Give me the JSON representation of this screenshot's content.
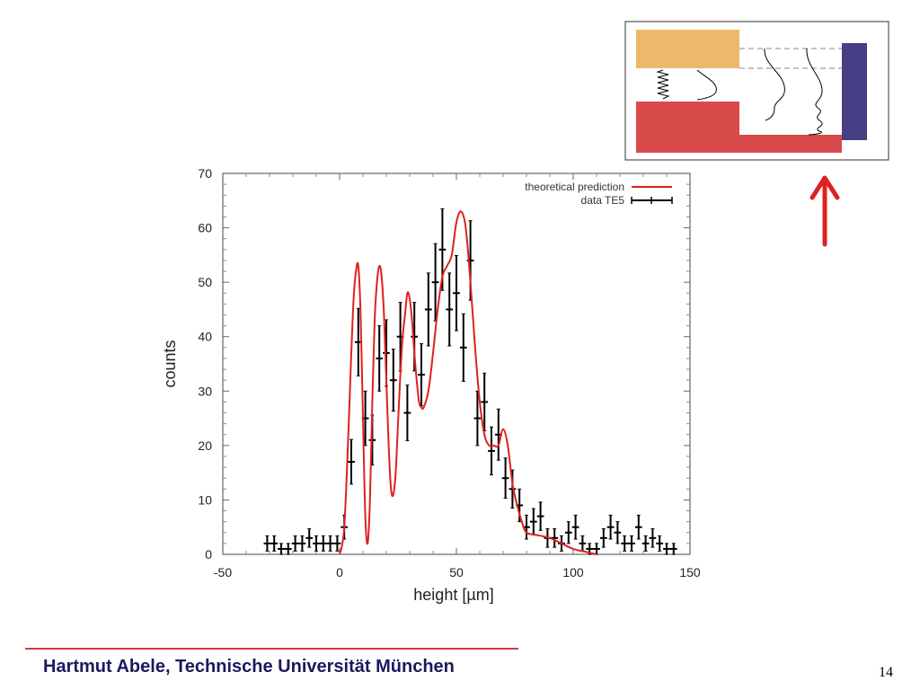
{
  "footer": {
    "author": "Hartmut Abele, Technische Universität München",
    "page_number": "14"
  },
  "colors": {
    "prediction": "#e02020",
    "data": "#000000",
    "inset_top_block": "#ecb96a",
    "inset_bottom_block": "#d94a4a",
    "inset_detector": "#463f85",
    "arrow": "#e02020",
    "footer_line": "#d23c3c",
    "footer_text": "#1a1a5e"
  },
  "chart_data": {
    "type": "scatter",
    "title": "",
    "xlabel": "height [µm]",
    "ylabel": "counts",
    "xlim": [
      -50,
      150
    ],
    "ylim": [
      0,
      70
    ],
    "xticks": [
      -50,
      0,
      50,
      100,
      150
    ],
    "yticks": [
      0,
      10,
      20,
      30,
      40,
      50,
      60,
      70
    ],
    "grid": false,
    "legend_position": "top-right",
    "legend": [
      {
        "label": "theoretical prediction",
        "kind": "line"
      },
      {
        "label": "data TE5",
        "kind": "errorbar"
      }
    ],
    "series": [
      {
        "name": "theoretical prediction",
        "kind": "line",
        "x": [
          0,
          2,
          4,
          5,
          6,
          7,
          8,
          9,
          10,
          11,
          12,
          13,
          14,
          15,
          16,
          17,
          18,
          19,
          20,
          21,
          22,
          23,
          24,
          25,
          26,
          27,
          28,
          29,
          30,
          31,
          32,
          33,
          34,
          35,
          36,
          38,
          40,
          42,
          44,
          46,
          48,
          50,
          52,
          54,
          56,
          58,
          60,
          62,
          64,
          66,
          68,
          70,
          72,
          74,
          76,
          78,
          80,
          85,
          90,
          95,
          100,
          105,
          110
        ],
        "y": [
          0,
          5,
          25,
          37,
          47,
          52,
          53,
          44,
          25,
          7,
          2,
          10,
          28,
          43,
          50,
          53,
          51,
          44,
          32,
          20,
          12,
          11,
          15,
          24,
          33,
          40,
          44,
          48,
          47,
          43,
          37,
          32,
          28,
          27,
          27,
          30,
          37,
          45,
          51,
          53,
          55,
          61,
          63,
          60,
          50,
          38,
          28,
          22,
          20,
          20,
          20,
          23,
          20,
          13,
          9,
          6,
          4,
          3.5,
          3,
          2,
          1,
          0.5,
          0
        ]
      },
      {
        "name": "data TE5",
        "kind": "errorbar",
        "x": [
          -31,
          -28,
          -25,
          -22,
          -19,
          -16,
          -13,
          -10,
          -7,
          -4,
          -1,
          2,
          5,
          8,
          11,
          14,
          17,
          20,
          23,
          26,
          29,
          32,
          35,
          38,
          41,
          44,
          47,
          50,
          53,
          56,
          59,
          62,
          65,
          68,
          71,
          74,
          77,
          80,
          83,
          86,
          89,
          92,
          95,
          98,
          101,
          104,
          107,
          110,
          113,
          116,
          119,
          122,
          125,
          128,
          131,
          134,
          137,
          140,
          143
        ],
        "y": [
          2,
          2,
          1,
          1,
          2,
          2,
          3,
          2,
          2,
          2,
          2,
          5,
          17,
          39,
          25,
          21,
          36,
          37,
          32,
          40,
          26,
          40,
          33,
          45,
          50,
          56,
          45,
          48,
          38,
          54,
          25,
          28,
          19,
          22,
          14,
          12,
          9,
          5,
          6,
          7,
          3,
          3,
          2,
          4,
          5,
          2,
          1,
          1,
          3,
          5,
          4,
          2,
          2,
          5,
          2,
          3,
          2,
          1,
          1
        ],
        "err": [
          1.4,
          1.4,
          1.0,
          1.0,
          1.4,
          1.4,
          1.7,
          1.4,
          1.4,
          1.4,
          1.4,
          2.2,
          4.1,
          6.2,
          5.0,
          4.6,
          6.0,
          6.1,
          5.7,
          6.3,
          5.1,
          6.3,
          5.7,
          6.7,
          7.1,
          7.5,
          6.7,
          6.9,
          6.2,
          7.3,
          5.0,
          5.3,
          4.4,
          4.7,
          3.7,
          3.5,
          3.0,
          2.2,
          2.4,
          2.6,
          1.7,
          1.7,
          1.4,
          2.0,
          2.2,
          1.4,
          1.0,
          1.0,
          1.7,
          2.2,
          2.0,
          1.4,
          1.4,
          2.2,
          1.4,
          1.7,
          1.4,
          1.0,
          1.0
        ]
      }
    ]
  }
}
